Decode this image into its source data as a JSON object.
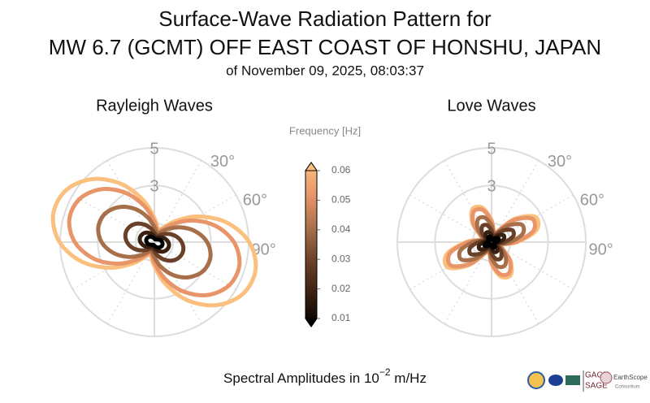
{
  "header": {
    "title_lines": [
      "Surface-Wave Radiation Pattern for",
      "MW 6.7 (GCMT) OFF EAST COAST OF HONSHU, JAPAN"
    ],
    "subtitle": "of November 09, 2025, 08:03:37"
  },
  "chart_data": [
    {
      "type": "polar",
      "title": "Rayleigh Waves",
      "theta": [
        0,
        15,
        30,
        45,
        60,
        75,
        90,
        105,
        120,
        135,
        150,
        165,
        180,
        195,
        210,
        225,
        240,
        255,
        270,
        285,
        300,
        315,
        330,
        345
      ],
      "rlim": [
        0,
        5
      ],
      "rticks": [
        1,
        3,
        5
      ],
      "thetaticks": [
        0,
        {
          "value": 30,
          "label": "30°"
        },
        {
          "value": 60,
          "label": "60°"
        },
        {
          "value": 90,
          "label": "90°"
        },
        120,
        150,
        180,
        210,
        240,
        270,
        300,
        330
      ],
      "series": [
        {
          "color": "#fbc07e",
          "values": [
            1.27,
            0.74,
            0.85,
            1.58,
            2.72,
            3.99,
            5.03,
            5.56,
            5.45,
            4.72,
            3.58,
            2.31,
            1.27,
            0.74,
            0.85,
            1.58,
            2.72,
            3.99,
            5.03,
            5.56,
            5.45,
            4.72,
            3.58,
            2.31
          ]
        },
        {
          "color": "#e8956a",
          "values": [
            1.08,
            0.63,
            0.72,
            1.33,
            2.29,
            3.35,
            4.22,
            4.67,
            4.58,
            3.97,
            3.01,
            1.95,
            1.08,
            0.63,
            0.72,
            1.33,
            2.29,
            3.35,
            4.22,
            4.67,
            4.58,
            3.97,
            3.01,
            1.95
          ]
        },
        {
          "color": "#a8704a",
          "values": [
            0.8,
            0.52,
            0.58,
            0.97,
            1.57,
            2.24,
            2.8,
            3.08,
            3.02,
            2.63,
            2.03,
            1.36,
            0.8,
            0.52,
            0.58,
            0.97,
            1.57,
            2.24,
            2.8,
            3.08,
            3.02,
            2.63,
            2.03,
            1.36
          ]
        },
        {
          "color": "#6b4028",
          "values": [
            0.5,
            0.36,
            0.39,
            0.57,
            0.87,
            1.19,
            1.45,
            1.59,
            1.56,
            1.38,
            1.08,
            0.76,
            0.5,
            0.36,
            0.39,
            0.57,
            0.87,
            1.19,
            1.45,
            1.59,
            1.56,
            1.38,
            1.08,
            0.76
          ]
        },
        {
          "color": "#3a2010",
          "values": [
            0.31,
            0.25,
            0.27,
            0.35,
            0.48,
            0.62,
            0.74,
            0.8,
            0.78,
            0.7,
            0.57,
            0.43,
            0.31,
            0.25,
            0.27,
            0.35,
            0.48,
            0.62,
            0.74,
            0.8,
            0.78,
            0.7,
            0.57,
            0.43
          ]
        },
        {
          "color": "#000000",
          "values": [
            0.19,
            0.15,
            0.16,
            0.2,
            0.27,
            0.35,
            0.41,
            0.45,
            0.44,
            0.4,
            0.33,
            0.25,
            0.19,
            0.15,
            0.16,
            0.2,
            0.27,
            0.35,
            0.41,
            0.45,
            0.44,
            0.4,
            0.33,
            0.25
          ]
        }
      ]
    },
    {
      "type": "polar",
      "title": "Love Waves",
      "theta": [
        0,
        15,
        30,
        45,
        60,
        75,
        90,
        105,
        120,
        135,
        150,
        165,
        180,
        195,
        210,
        225,
        240,
        255,
        270,
        285,
        300,
        315,
        330,
        345
      ],
      "rlim": [
        0,
        5
      ],
      "rticks": [
        1,
        3,
        5
      ],
      "thetaticks": [
        0,
        {
          "value": 30,
          "label": "30°"
        },
        {
          "value": 60,
          "label": "60°"
        },
        {
          "value": 90,
          "label": "90°"
        },
        120,
        150,
        180,
        210,
        240,
        270,
        300,
        330
      ],
      "series": [
        {
          "color": "#fbc07e",
          "values": [
            1.17,
            0.51,
            0.69,
            1.75,
            2.68,
            2.46,
            1.35,
            0.51,
            0.66,
            1.44,
            2.02,
            1.89,
            1.17,
            0.51,
            0.69,
            1.75,
            2.68,
            2.46,
            1.35,
            0.51,
            0.66,
            1.44,
            2.02,
            1.89
          ]
        },
        {
          "color": "#e8956a",
          "values": [
            1.1,
            0.5,
            0.67,
            1.64,
            2.48,
            2.29,
            1.27,
            0.5,
            0.65,
            1.36,
            1.88,
            1.76,
            1.1,
            0.5,
            0.67,
            1.64,
            2.48,
            2.29,
            1.27,
            0.5,
            0.65,
            1.36,
            1.88,
            1.76
          ]
        },
        {
          "color": "#a8704a",
          "values": [
            0.87,
            0.44,
            0.56,
            1.25,
            1.85,
            1.71,
            0.99,
            0.44,
            0.54,
            1.05,
            1.42,
            1.34,
            0.87,
            0.44,
            0.56,
            1.25,
            1.85,
            1.71,
            0.99,
            0.44,
            0.54,
            1.05,
            1.42,
            1.34
          ]
        },
        {
          "color": "#6b4028",
          "values": [
            0.61,
            0.33,
            0.41,
            0.87,
            1.27,
            1.18,
            0.69,
            0.33,
            0.39,
            0.73,
            0.98,
            0.93,
            0.61,
            0.33,
            0.41,
            0.87,
            1.27,
            1.18,
            0.69,
            0.33,
            0.39,
            0.73,
            0.98,
            0.93
          ]
        },
        {
          "color": "#3a2010",
          "values": [
            0.37,
            0.21,
            0.26,
            0.51,
            0.73,
            0.68,
            0.42,
            0.21,
            0.25,
            0.44,
            0.57,
            0.54,
            0.37,
            0.21,
            0.26,
            0.51,
            0.73,
            0.68,
            0.42,
            0.21,
            0.25,
            0.44,
            0.57,
            0.54
          ]
        },
        {
          "color": "#000000",
          "values": [
            0.21,
            0.13,
            0.15,
            0.29,
            0.41,
            0.38,
            0.24,
            0.13,
            0.15,
            0.25,
            0.32,
            0.31,
            0.21,
            0.13,
            0.15,
            0.29,
            0.41,
            0.38,
            0.24,
            0.13,
            0.15,
            0.25,
            0.32,
            0.31
          ]
        }
      ]
    }
  ],
  "colorbar": {
    "label": "Frequency [Hz]",
    "lim": [
      0.01,
      0.06
    ],
    "ticks": [
      0.01,
      0.02,
      0.03,
      0.04,
      0.05,
      0.06
    ],
    "colormap": [
      "#000000",
      "#3a2010",
      "#6b4028",
      "#a8704a",
      "#e8956a",
      "#fbc07e"
    ]
  },
  "footer": {
    "text": "Spectral Amplitudes in ",
    "base": "10",
    "exponent": "−2",
    "unit": " m/Hz"
  },
  "logos": {
    "gage": "GAGE",
    "sage": "SAGE",
    "earthscope": "EarthScope",
    "consortium": "Consortium"
  }
}
